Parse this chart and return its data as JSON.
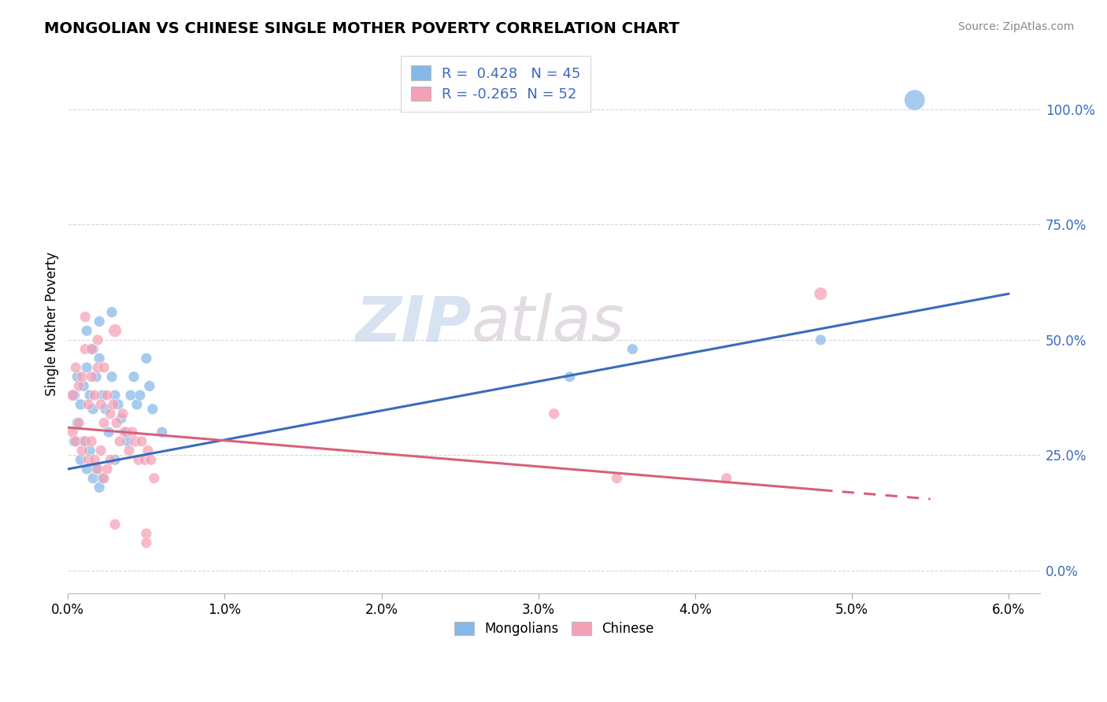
{
  "title": "MONGOLIAN VS CHINESE SINGLE MOTHER POVERTY CORRELATION CHART",
  "source": "Source: ZipAtlas.com",
  "xlim": [
    0.0,
    0.062
  ],
  "ylim": [
    -0.05,
    1.12
  ],
  "mongolian_color": "#85b8e8",
  "chinese_color": "#f4a0b5",
  "mongolian_line_color": "#3a6bbd",
  "chinese_line_color": "#d9607a",
  "R_mongolian": 0.428,
  "N_mongolian": 45,
  "R_chinese": -0.265,
  "N_chinese": 52,
  "ylabel": "Single Mother Poverty",
  "watermark_zip": "ZIP",
  "watermark_atlas": "atlas",
  "background_color": "#ffffff",
  "grid_color": "#cccccc",
  "mong_line_x0": 0.0,
  "mong_line_y0": 0.22,
  "mong_line_x1": 0.06,
  "mong_line_y1": 0.6,
  "chin_line_x0": 0.0,
  "chin_line_y0": 0.31,
  "chin_line_x1": 0.055,
  "chin_line_y1": 0.155,
  "chin_line_solid_x1": 0.048,
  "mongolian_data_x": [
    0.0004,
    0.0006,
    0.0008,
    0.001,
    0.0012,
    0.0014,
    0.0016,
    0.0018,
    0.002,
    0.0022,
    0.0024,
    0.0026,
    0.0028,
    0.003,
    0.0032,
    0.0034,
    0.0036,
    0.0038,
    0.004,
    0.0042,
    0.0044,
    0.0046,
    0.005,
    0.0052,
    0.0054,
    0.006,
    0.0004,
    0.0006,
    0.0008,
    0.001,
    0.0012,
    0.0014,
    0.0016,
    0.0018,
    0.002,
    0.0022,
    0.003,
    0.032,
    0.036,
    0.048,
    0.0012,
    0.0016,
    0.002,
    0.0028,
    0.054
  ],
  "mongolian_data_y": [
    0.38,
    0.42,
    0.36,
    0.4,
    0.44,
    0.38,
    0.35,
    0.42,
    0.46,
    0.38,
    0.35,
    0.3,
    0.42,
    0.38,
    0.36,
    0.33,
    0.3,
    0.28,
    0.38,
    0.42,
    0.36,
    0.38,
    0.46,
    0.4,
    0.35,
    0.3,
    0.28,
    0.32,
    0.24,
    0.28,
    0.22,
    0.26,
    0.2,
    0.22,
    0.18,
    0.2,
    0.24,
    0.42,
    0.48,
    0.5,
    0.52,
    0.48,
    0.54,
    0.56,
    1.02
  ],
  "mongolian_sizes": [
    60,
    55,
    55,
    55,
    55,
    55,
    55,
    55,
    55,
    55,
    55,
    55,
    55,
    55,
    55,
    55,
    55,
    55,
    55,
    55,
    55,
    55,
    55,
    55,
    55,
    55,
    55,
    55,
    55,
    55,
    55,
    55,
    55,
    55,
    55,
    55,
    55,
    55,
    55,
    55,
    55,
    55,
    55,
    55,
    200
  ],
  "chinese_data_x": [
    0.0003,
    0.0005,
    0.0007,
    0.0009,
    0.0011,
    0.0013,
    0.0015,
    0.0017,
    0.0019,
    0.0021,
    0.0023,
    0.0025,
    0.0027,
    0.0029,
    0.0031,
    0.0033,
    0.0035,
    0.0037,
    0.0039,
    0.0041,
    0.0043,
    0.0045,
    0.0047,
    0.0049,
    0.0051,
    0.0053,
    0.0055,
    0.0003,
    0.0005,
    0.0007,
    0.0009,
    0.0011,
    0.0013,
    0.0015,
    0.0017,
    0.0019,
    0.0021,
    0.0023,
    0.0025,
    0.0027,
    0.003,
    0.031,
    0.035,
    0.042,
    0.048,
    0.0011,
    0.0015,
    0.0019,
    0.0023,
    0.003,
    0.005,
    0.005
  ],
  "chinese_data_y": [
    0.38,
    0.44,
    0.4,
    0.42,
    0.48,
    0.36,
    0.42,
    0.38,
    0.44,
    0.36,
    0.32,
    0.38,
    0.34,
    0.36,
    0.32,
    0.28,
    0.34,
    0.3,
    0.26,
    0.3,
    0.28,
    0.24,
    0.28,
    0.24,
    0.26,
    0.24,
    0.2,
    0.3,
    0.28,
    0.32,
    0.26,
    0.28,
    0.24,
    0.28,
    0.24,
    0.22,
    0.26,
    0.2,
    0.22,
    0.24,
    0.52,
    0.34,
    0.2,
    0.2,
    0.6,
    0.55,
    0.48,
    0.5,
    0.44,
    0.1,
    0.08,
    0.06
  ],
  "chinese_sizes": [
    60,
    55,
    55,
    55,
    55,
    55,
    55,
    55,
    55,
    55,
    55,
    55,
    55,
    55,
    55,
    55,
    55,
    55,
    55,
    55,
    55,
    55,
    55,
    55,
    55,
    55,
    55,
    55,
    55,
    55,
    55,
    55,
    55,
    55,
    55,
    55,
    55,
    55,
    55,
    55,
    80,
    55,
    55,
    55,
    80,
    55,
    55,
    55,
    55,
    55,
    55,
    55
  ]
}
